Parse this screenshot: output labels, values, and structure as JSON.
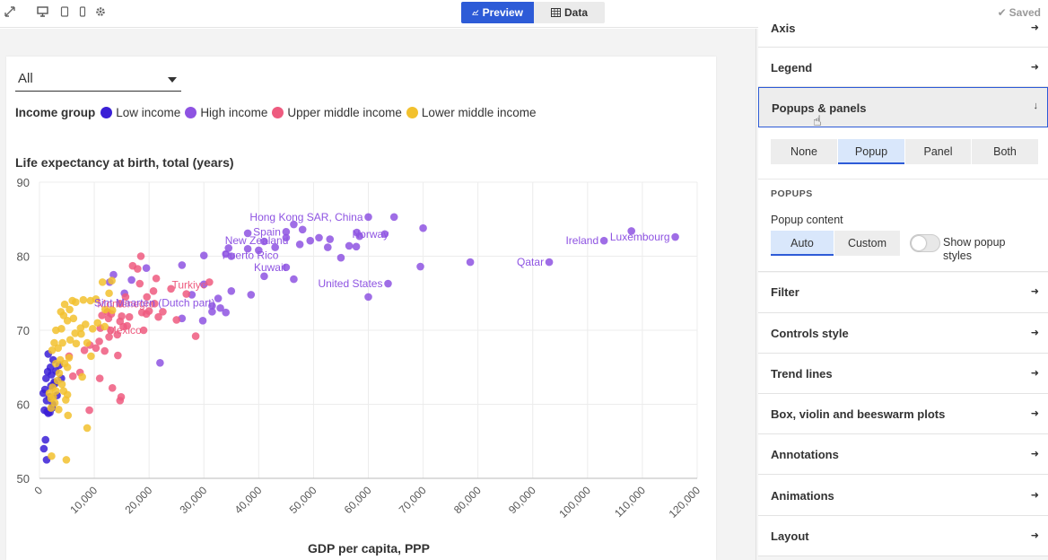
{
  "topbar": {
    "icons": [
      "expand-icon",
      "desktop-icon",
      "tablet-icon",
      "mobile-icon",
      "settings-icon"
    ],
    "tabs": [
      {
        "label": "Preview",
        "active": true
      },
      {
        "label": "Data",
        "active": false
      }
    ],
    "saved_label": "Saved"
  },
  "filter": {
    "selected": "All"
  },
  "legend": {
    "title": "Income group",
    "items": [
      {
        "label": "Low income",
        "color": "#3a1fd6"
      },
      {
        "label": "High income",
        "color": "#8e53e2"
      },
      {
        "label": "Upper middle income",
        "color": "#ee5b7f"
      },
      {
        "label": "Lower middle income",
        "color": "#f2c12e"
      }
    ]
  },
  "chart_data": {
    "type": "scatter",
    "title": "Life expectancy at birth, total (years)",
    "xlabel": "GDP per capita, PPP",
    "ylabel": "",
    "xlim": [
      0,
      120000
    ],
    "ylim": [
      50,
      90
    ],
    "xticks": [
      "0",
      "10,000",
      "20,000",
      "30,000",
      "40,000",
      "50,000",
      "60,000",
      "70,000",
      "80,000",
      "90,000",
      "100,000",
      "110,000",
      "120,000"
    ],
    "yticks": [
      "50",
      "60",
      "70",
      "80",
      "90"
    ],
    "grid": true,
    "series": [
      {
        "name": "Low income",
        "color": "#3a1fd6",
        "points": [
          [
            700,
            61.5
          ],
          [
            900,
            59.2
          ],
          [
            1000,
            62
          ],
          [
            1200,
            63.5
          ],
          [
            1300,
            60.5
          ],
          [
            1500,
            64.4
          ],
          [
            1600,
            58.8
          ],
          [
            1800,
            61
          ],
          [
            2000,
            65
          ],
          [
            2100,
            62.5
          ],
          [
            2300,
            59.5
          ],
          [
            2500,
            66
          ],
          [
            2700,
            63
          ],
          [
            3000,
            64.5
          ],
          [
            3200,
            61.2
          ],
          [
            3600,
            65.3
          ],
          [
            1100,
            55.2
          ],
          [
            800,
            54
          ],
          [
            1300,
            52.5
          ],
          [
            1600,
            66.8
          ],
          [
            2400,
            60
          ],
          [
            1900,
            58.9
          ],
          [
            2800,
            62.8
          ],
          [
            1400,
            59
          ],
          [
            4000,
            63.5
          ],
          [
            2200,
            64
          ]
        ]
      },
      {
        "name": "High income",
        "color": "#8e53e2",
        "points": [
          [
            46400,
            84.3
          ],
          [
            60000,
            85.3
          ],
          [
            64700,
            85.3
          ],
          [
            48000,
            83.6
          ],
          [
            45000,
            83.3
          ],
          [
            57900,
            83.2
          ],
          [
            63000,
            83
          ],
          [
            58400,
            82.7
          ],
          [
            45000,
            82.5
          ],
          [
            49400,
            82.1
          ],
          [
            53000,
            82.3
          ],
          [
            38000,
            83.1
          ],
          [
            70000,
            83.8
          ],
          [
            52600,
            81.2
          ],
          [
            56500,
            81.4
          ],
          [
            57800,
            81.3
          ],
          [
            41000,
            82
          ],
          [
            40000,
            80.8
          ],
          [
            47500,
            81.6
          ],
          [
            103000,
            82.1
          ],
          [
            116000,
            82.6
          ],
          [
            108000,
            83.4
          ],
          [
            93000,
            79.2
          ],
          [
            78600,
            79.2
          ],
          [
            69500,
            78.6
          ],
          [
            34000,
            80.3
          ],
          [
            34500,
            81.1
          ],
          [
            30000,
            80.1
          ],
          [
            26000,
            78.8
          ],
          [
            38000,
            81
          ],
          [
            35000,
            80
          ],
          [
            45000,
            78.5
          ],
          [
            41000,
            77.3
          ],
          [
            46400,
            76.9
          ],
          [
            63600,
            76.3
          ],
          [
            60000,
            74.5
          ],
          [
            38600,
            74.8
          ],
          [
            32600,
            74.3
          ],
          [
            33000,
            73
          ],
          [
            30000,
            76.2
          ],
          [
            31500,
            73.3
          ],
          [
            35000,
            75.3
          ],
          [
            27800,
            74.8
          ],
          [
            31500,
            72.5
          ],
          [
            34000,
            72.4
          ],
          [
            19500,
            78.4
          ],
          [
            13500,
            77.5
          ],
          [
            12800,
            76.5
          ],
          [
            16800,
            76.8
          ],
          [
            15500,
            75
          ],
          [
            26000,
            71.6
          ],
          [
            29800,
            71.3
          ],
          [
            22000,
            65.6
          ],
          [
            43000,
            81.2
          ],
          [
            51000,
            82.5
          ],
          [
            55000,
            79.8
          ]
        ]
      },
      {
        "name": "Upper middle income",
        "color": "#ee5b7f",
        "points": [
          [
            18500,
            80
          ],
          [
            17000,
            78.7
          ],
          [
            17900,
            78.3
          ],
          [
            21300,
            77
          ],
          [
            20800,
            75.3
          ],
          [
            18300,
            76.3
          ],
          [
            24000,
            75.6
          ],
          [
            26800,
            74.9
          ],
          [
            31000,
            76.5
          ],
          [
            19600,
            74.5
          ],
          [
            21000,
            73.6
          ],
          [
            15700,
            74.5
          ],
          [
            14700,
            73.6
          ],
          [
            13100,
            72.2
          ],
          [
            18700,
            72.4
          ],
          [
            20000,
            72.6
          ],
          [
            21700,
            71.8
          ],
          [
            25000,
            71.4
          ],
          [
            19500,
            72.2
          ],
          [
            15000,
            71.9
          ],
          [
            14700,
            71.2
          ],
          [
            16400,
            71.8
          ],
          [
            12400,
            72.5
          ],
          [
            12600,
            71.6
          ],
          [
            11400,
            72
          ],
          [
            11100,
            70.3
          ],
          [
            13000,
            70
          ],
          [
            14200,
            69.4
          ],
          [
            15300,
            70.5
          ],
          [
            12700,
            69.1
          ],
          [
            10900,
            68.5
          ],
          [
            9200,
            68
          ],
          [
            11900,
            67.2
          ],
          [
            10300,
            67.6
          ],
          [
            8200,
            67.3
          ],
          [
            19000,
            70
          ],
          [
            28500,
            69.2
          ],
          [
            22500,
            72.5
          ],
          [
            16000,
            70.6
          ],
          [
            14300,
            66.6
          ],
          [
            11000,
            63.5
          ],
          [
            13300,
            62.2
          ],
          [
            14900,
            61
          ],
          [
            14700,
            60.5
          ],
          [
            9100,
            59.2
          ],
          [
            6100,
            63.8
          ],
          [
            5400,
            66.5
          ],
          [
            7400,
            64.3
          ]
        ]
      },
      {
        "name": "Lower middle income",
        "color": "#f2c12e",
        "points": [
          [
            3000,
            70
          ],
          [
            5500,
            72.8
          ],
          [
            6000,
            74
          ],
          [
            6600,
            73.8
          ],
          [
            8000,
            74.1
          ],
          [
            9300,
            74
          ],
          [
            10300,
            74.2
          ],
          [
            11500,
            76.5
          ],
          [
            13200,
            76.7
          ],
          [
            12000,
            72.8
          ],
          [
            10600,
            71
          ],
          [
            8400,
            70.8
          ],
          [
            7600,
            69.5
          ],
          [
            6200,
            71.6
          ],
          [
            5100,
            71.3
          ],
          [
            4000,
            70.2
          ],
          [
            2700,
            68.3
          ],
          [
            2300,
            67.3
          ],
          [
            3400,
            67.6
          ],
          [
            4200,
            68.3
          ],
          [
            5600,
            68.7
          ],
          [
            6500,
            69.6
          ],
          [
            3800,
            66
          ],
          [
            3000,
            65.5
          ],
          [
            4600,
            65.5
          ],
          [
            5100,
            65
          ],
          [
            3600,
            64.2
          ],
          [
            4100,
            62.7
          ],
          [
            3300,
            63.2
          ],
          [
            2400,
            62.3
          ],
          [
            2100,
            60.8
          ],
          [
            3000,
            61.8
          ],
          [
            4400,
            61.8
          ],
          [
            5100,
            61.3
          ],
          [
            2800,
            60.2
          ],
          [
            2100,
            59.5
          ],
          [
            3500,
            59.3
          ],
          [
            4800,
            60.6
          ],
          [
            5200,
            58.5
          ],
          [
            8700,
            56.8
          ],
          [
            4900,
            52.5
          ],
          [
            2200,
            53
          ],
          [
            8700,
            68.3
          ],
          [
            9700,
            70.2
          ],
          [
            9400,
            66.5
          ],
          [
            7800,
            63.7
          ],
          [
            3900,
            72.5
          ],
          [
            4400,
            72
          ],
          [
            4600,
            73.5
          ],
          [
            7500,
            70.3
          ],
          [
            12700,
            75
          ],
          [
            13300,
            72.7
          ],
          [
            11900,
            70.5
          ],
          [
            6700,
            68.2
          ],
          [
            5400,
            66.3
          ],
          [
            1800,
            61.5
          ],
          [
            2500,
            61
          ]
        ]
      }
    ],
    "annotations": [
      {
        "label": "Hong Kong SAR, China",
        "x": 60000,
        "y": 85.3
      },
      {
        "label": "Spain",
        "x": 45000,
        "y": 83.3
      },
      {
        "label": "New Zealand",
        "x": 46400,
        "y": 82.1
      },
      {
        "label": "Norway",
        "x": 64700,
        "y": 83
      },
      {
        "label": "Puerto Rico",
        "x": 44600,
        "y": 80.1
      },
      {
        "label": "Kuwait",
        "x": 46000,
        "y": 78.5
      },
      {
        "label": "Luxembourg",
        "x": 116000,
        "y": 82.6
      },
      {
        "label": "Ireland",
        "x": 103000,
        "y": 82.1
      },
      {
        "label": "Qatar",
        "x": 93000,
        "y": 79.2
      },
      {
        "label": "United States",
        "x": 63600,
        "y": 76.3
      },
      {
        "label": "Turkiye",
        "x": 31500,
        "y": 76.1
      },
      {
        "label": "Montenegro",
        "x": 22000,
        "y": 73.6
      },
      {
        "label": "Sint Maarten (Dutch part)",
        "x": 33000,
        "y": 73.7
      },
      {
        "label": "Mexico",
        "x": 19600,
        "y": 70
      }
    ]
  },
  "panel": {
    "top_partial": "Axis",
    "sections_before": [
      {
        "label": "Legend"
      },
      {
        "label": "Popups & panels",
        "active": true
      }
    ],
    "mode_options": [
      "None",
      "Popup",
      "Panel",
      "Both"
    ],
    "mode_selected": "Popup",
    "popups_heading": "POPUPS",
    "popup_content_label": "Popup content",
    "content_options": [
      "Auto",
      "Custom"
    ],
    "content_selected": "Auto",
    "toggle_label_line1": "Show popup",
    "toggle_label_line2": "styles",
    "toggle_on": false,
    "sections_after": [
      {
        "label": "Filter"
      },
      {
        "label": "Controls style"
      },
      {
        "label": "Trend lines"
      },
      {
        "label": "Box, violin and beeswarm plots"
      },
      {
        "label": "Annotations"
      },
      {
        "label": "Animations"
      },
      {
        "label": "Layout"
      }
    ]
  }
}
